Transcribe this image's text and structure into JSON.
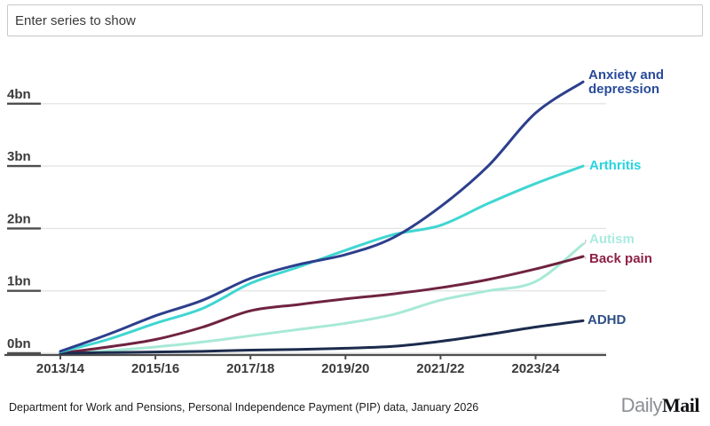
{
  "search": {
    "placeholder": "Enter series to show"
  },
  "footer": {
    "source": "Department for Work and Pensions, Personal Independence Payment (PIP) data, January 2026",
    "logo_daily": "Daily",
    "logo_mail": "Mail"
  },
  "colors": {
    "grid_light": "#e4e4e4",
    "axis_dark": "#4d4d4d",
    "tick_text": "#3a3a3a",
    "background": "#ffffff"
  },
  "chart_data": {
    "type": "line",
    "title": "",
    "xlabel": "",
    "ylabel": "",
    "x": [
      "2013/14",
      "2014/15",
      "2015/16",
      "2016/17",
      "2017/18",
      "2018/19",
      "2019/20",
      "2020/21",
      "2021/22",
      "2022/23",
      "2023/24",
      "2024/25"
    ],
    "x_tick_indices": [
      0,
      2,
      4,
      6,
      8,
      10
    ],
    "x_tick_labels": [
      "2013/14",
      "2015/16",
      "2017/18",
      "2019/20",
      "2021/22",
      "2023/24"
    ],
    "yticks": [
      {
        "value": 0,
        "label": "0bn"
      },
      {
        "value": 1,
        "label": "1bn"
      },
      {
        "value": 2,
        "label": "2bn"
      },
      {
        "value": 3,
        "label": "3bn"
      },
      {
        "value": 4,
        "label": "4bn"
      }
    ],
    "ylim": [
      0,
      4.5
    ],
    "grid": true,
    "legend_position": "right-of-line-ends",
    "series": [
      {
        "name": "Anxiety and depression",
        "color": "#2d3f8c",
        "label_color": "#2a4b9b",
        "values": [
          0.03,
          0.3,
          0.6,
          0.85,
          1.2,
          1.42,
          1.58,
          1.85,
          2.35,
          3.0,
          3.85,
          4.35
        ]
      },
      {
        "name": "Arthritis",
        "color": "#3fd6d2",
        "label_color": "#27d4e0",
        "values": [
          0.02,
          0.22,
          0.48,
          0.72,
          1.12,
          1.38,
          1.65,
          1.9,
          2.05,
          2.4,
          2.72,
          3.0
        ]
      },
      {
        "name": "Autism",
        "color": "#a7e9d6",
        "label_color": "#a9ebe0",
        "values": [
          0.0,
          0.04,
          0.1,
          0.18,
          0.28,
          0.38,
          0.48,
          0.62,
          0.85,
          1.0,
          1.15,
          1.75
        ]
      },
      {
        "name": "Back pain",
        "color": "#6f2340",
        "label_color": "#8e2045",
        "values": [
          0.0,
          0.1,
          0.22,
          0.42,
          0.68,
          0.78,
          0.87,
          0.95,
          1.05,
          1.18,
          1.35,
          1.55
        ]
      },
      {
        "name": "ADHD",
        "color": "#1c2b4d",
        "label_color": "#2e4f85",
        "values": [
          0.0,
          0.01,
          0.02,
          0.03,
          0.05,
          0.06,
          0.08,
          0.11,
          0.19,
          0.3,
          0.42,
          0.52
        ]
      }
    ]
  }
}
